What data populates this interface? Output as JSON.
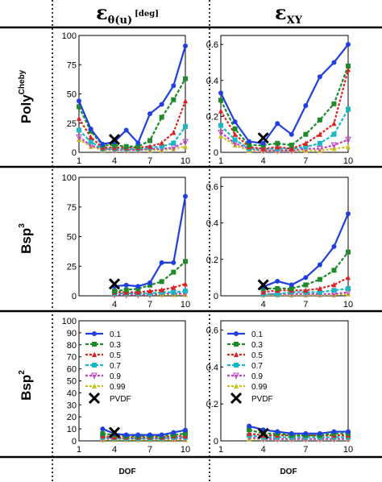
{
  "header": {
    "col1": {
      "symbol": "ε",
      "sub": "θ(u)",
      "unit": "[deg]"
    },
    "col2": {
      "symbol": "ε",
      "sub": "XY"
    }
  },
  "rows": [
    {
      "base": "Poly",
      "sup": "Cheby"
    },
    {
      "base": "Bsp",
      "sup": "3"
    },
    {
      "base": "Bsp",
      "sup": "2"
    }
  ],
  "footer": {
    "xlabel_col1": "DOF",
    "xlabel_col2": "DOF"
  },
  "legend": {
    "items": [
      {
        "label": "0.1",
        "color": "#1f3fe0",
        "marker": "circle"
      },
      {
        "label": "0.3",
        "color": "#1e8a2a",
        "marker": "square"
      },
      {
        "label": "0.5",
        "color": "#e0201f",
        "marker": "triangle-up"
      },
      {
        "label": "0.7",
        "color": "#19b8c4",
        "marker": "square"
      },
      {
        "label": "0.9",
        "color": "#c23fc9",
        "marker": "triangle-down"
      },
      {
        "label": "0.99",
        "color": "#c8c21e",
        "marker": "triangle-up"
      }
    ],
    "pvdf_label": "PVDF"
  },
  "chart_data": [
    {
      "id": "poly-theta",
      "type": "line",
      "xlabel": "",
      "ylabel": "",
      "xticks": [
        1,
        4,
        7,
        10
      ],
      "xlim": [
        1,
        10
      ],
      "ylim": [
        0,
        100
      ],
      "yticks": [
        0,
        25,
        50,
        75,
        100
      ],
      "grid": false,
      "legend": false,
      "pvdf": [
        4,
        11
      ],
      "x": [
        1,
        2,
        3,
        4,
        5,
        6,
        7,
        8,
        9,
        10
      ],
      "series": [
        {
          "name": "0.1",
          "values": [
            44,
            20,
            7,
            9,
            19,
            8,
            33,
            41,
            57,
            91
          ]
        },
        {
          "name": "0.3",
          "values": [
            39,
            18,
            6,
            6,
            5,
            5,
            10,
            30,
            45,
            63
          ]
        },
        {
          "name": "0.5",
          "values": [
            29,
            13,
            4,
            4,
            4,
            4,
            5,
            8,
            17,
            44
          ]
        },
        {
          "name": "0.7",
          "values": [
            19,
            9,
            3,
            3,
            3,
            3,
            4,
            5,
            8,
            22
          ]
        },
        {
          "name": "0.9",
          "values": [
            13,
            6,
            3,
            2,
            2,
            2,
            3,
            3,
            4,
            9
          ]
        },
        {
          "name": "0.99",
          "values": [
            11,
            5,
            2,
            2,
            2,
            2,
            2,
            2,
            3,
            5
          ]
        }
      ]
    },
    {
      "id": "poly-xy",
      "type": "line",
      "xlabel": "",
      "ylabel": "",
      "xticks": [
        1,
        4,
        7,
        10
      ],
      "xlim": [
        1,
        10
      ],
      "ylim": [
        0,
        0.65
      ],
      "yticks": [
        0,
        0.2,
        0.4,
        0.6
      ],
      "grid": false,
      "legend": false,
      "pvdf": [
        4,
        0.08
      ],
      "x": [
        1,
        2,
        3,
        4,
        5,
        6,
        7,
        8,
        9,
        10
      ],
      "series": [
        {
          "name": "0.1",
          "values": [
            0.33,
            0.17,
            0.06,
            0.05,
            0.16,
            0.1,
            0.26,
            0.42,
            0.5,
            0.6
          ]
        },
        {
          "name": "0.3",
          "values": [
            0.29,
            0.13,
            0.04,
            0.04,
            0.05,
            0.04,
            0.1,
            0.18,
            0.27,
            0.48
          ]
        },
        {
          "name": "0.5",
          "values": [
            0.23,
            0.1,
            0.03,
            0.02,
            0.03,
            0.02,
            0.05,
            0.1,
            0.16,
            0.46
          ]
        },
        {
          "name": "0.7",
          "values": [
            0.15,
            0.07,
            0.02,
            0.02,
            0.02,
            0.02,
            0.03,
            0.05,
            0.1,
            0.24
          ]
        },
        {
          "name": "0.9",
          "values": [
            0.11,
            0.05,
            0.02,
            0.01,
            0.01,
            0.01,
            0.02,
            0.02,
            0.04,
            0.07
          ]
        },
        {
          "name": "0.99",
          "values": [
            0.09,
            0.04,
            0.01,
            0.01,
            0.01,
            0.01,
            0.01,
            0.01,
            0.02,
            0.03
          ]
        }
      ]
    },
    {
      "id": "bsp3-theta",
      "type": "line",
      "xlabel": "",
      "ylabel": "",
      "xticks": [
        4,
        7,
        10
      ],
      "xlim": [
        1,
        10
      ],
      "ylim": [
        0,
        100
      ],
      "yticks": [
        0,
        25,
        50,
        75,
        100
      ],
      "grid": false,
      "legend": false,
      "pvdf": [
        4,
        10
      ],
      "x": [
        4,
        5,
        6,
        7,
        8,
        9,
        10
      ],
      "series": [
        {
          "name": "0.1",
          "values": [
            8,
            9,
            8,
            11,
            28,
            28,
            84
          ]
        },
        {
          "name": "0.3",
          "values": [
            4,
            5,
            6,
            9,
            12,
            20,
            29
          ]
        },
        {
          "name": "0.5",
          "values": [
            3,
            3,
            3,
            4,
            5,
            7,
            10
          ]
        },
        {
          "name": "0.7",
          "values": [
            2,
            2,
            2,
            2,
            3,
            3,
            4
          ]
        },
        {
          "name": "0.9",
          "values": [
            1,
            1,
            1,
            1,
            2,
            2,
            2
          ]
        },
        {
          "name": "0.99",
          "values": [
            1,
            1,
            1,
            1,
            1,
            1,
            1
          ]
        }
      ]
    },
    {
      "id": "bsp3-xy",
      "type": "line",
      "xlabel": "",
      "ylabel": "",
      "xticks": [
        4,
        7,
        10
      ],
      "xlim": [
        1,
        10
      ],
      "ylim": [
        0,
        0.65
      ],
      "yticks": [
        0,
        0.2,
        0.4,
        0.6
      ],
      "grid": false,
      "legend": false,
      "pvdf": [
        4,
        0.06
      ],
      "x": [
        4,
        5,
        6,
        7,
        8,
        9,
        10
      ],
      "series": [
        {
          "name": "0.1",
          "values": [
            0.05,
            0.08,
            0.06,
            0.1,
            0.17,
            0.27,
            0.45
          ]
        },
        {
          "name": "0.3",
          "values": [
            0.04,
            0.04,
            0.04,
            0.06,
            0.09,
            0.14,
            0.24
          ]
        },
        {
          "name": "0.5",
          "values": [
            0.02,
            0.03,
            0.03,
            0.03,
            0.04,
            0.06,
            0.1
          ]
        },
        {
          "name": "0.7",
          "values": [
            0.01,
            0.01,
            0.02,
            0.02,
            0.02,
            0.03,
            0.04
          ]
        },
        {
          "name": "0.9",
          "values": [
            0.01,
            0.01,
            0.01,
            0.01,
            0.01,
            0.01,
            0.02
          ]
        },
        {
          "name": "0.99",
          "values": [
            0.005,
            0.005,
            0.005,
            0.005,
            0.005,
            0.005,
            0.01
          ]
        }
      ]
    },
    {
      "id": "bsp2-theta",
      "type": "line",
      "xlabel": "",
      "ylabel": "",
      "xticks": [
        1,
        4,
        7,
        10
      ],
      "xlim": [
        1,
        10
      ],
      "ylim": [
        0,
        100
      ],
      "yticks": [
        0,
        10,
        20,
        30,
        40,
        50,
        60,
        70,
        80,
        90,
        100
      ],
      "grid": false,
      "legend": true,
      "pvdf": [
        4,
        7
      ],
      "x": [
        3,
        4,
        5,
        6,
        7,
        8,
        9,
        10
      ],
      "series": [
        {
          "name": "0.1",
          "values": [
            10,
            6,
            5,
            5,
            5,
            5,
            7,
            9
          ]
        },
        {
          "name": "0.3",
          "values": [
            6,
            5,
            4,
            4,
            4,
            4,
            5,
            6
          ]
        },
        {
          "name": "0.5",
          "values": [
            4,
            3,
            3,
            3,
            3,
            3,
            4,
            4
          ]
        },
        {
          "name": "0.7",
          "values": [
            3,
            2,
            2,
            2,
            2,
            2,
            3,
            3
          ]
        },
        {
          "name": "0.9",
          "values": [
            2,
            2,
            2,
            2,
            2,
            2,
            2,
            2
          ]
        },
        {
          "name": "0.99",
          "values": [
            1,
            1,
            1,
            1,
            1,
            1,
            1,
            1
          ]
        }
      ]
    },
    {
      "id": "bsp2-xy",
      "type": "line",
      "xlabel": "",
      "ylabel": "",
      "xticks": [
        1,
        4,
        7,
        10
      ],
      "xlim": [
        1,
        10
      ],
      "ylim": [
        0,
        0.65
      ],
      "yticks": [
        0,
        0.2,
        0.4,
        0.6
      ],
      "grid": false,
      "legend": true,
      "pvdf": [
        4,
        0.04
      ],
      "x": [
        3,
        4,
        5,
        6,
        7,
        8,
        9,
        10
      ],
      "series": [
        {
          "name": "0.1",
          "values": [
            0.08,
            0.06,
            0.05,
            0.04,
            0.04,
            0.04,
            0.05,
            0.05
          ]
        },
        {
          "name": "0.3",
          "values": [
            0.06,
            0.04,
            0.04,
            0.03,
            0.03,
            0.03,
            0.04,
            0.04
          ]
        },
        {
          "name": "0.5",
          "values": [
            0.04,
            0.03,
            0.03,
            0.03,
            0.03,
            0.03,
            0.03,
            0.03
          ]
        },
        {
          "name": "0.7",
          "values": [
            0.03,
            0.02,
            0.02,
            0.02,
            0.02,
            0.02,
            0.02,
            0.02
          ]
        },
        {
          "name": "0.9",
          "values": [
            0.02,
            0.01,
            0.01,
            0.01,
            0.01,
            0.01,
            0.01,
            0.01
          ]
        },
        {
          "name": "0.99",
          "values": [
            0.01,
            0.01,
            0.01,
            0.01,
            0.01,
            0.01,
            0.01,
            0.01
          ]
        }
      ]
    }
  ]
}
